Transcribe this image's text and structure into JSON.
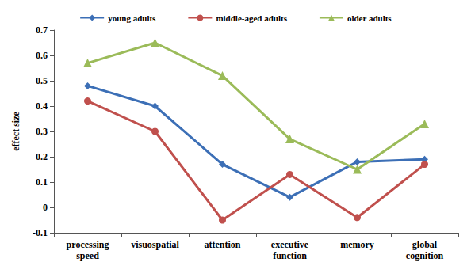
{
  "chart_data": {
    "type": "line",
    "y_label": "effect size",
    "categories": [
      "processing speed",
      "visuospatial",
      "attention",
      "executive function",
      "memory",
      "global cognition"
    ],
    "series": [
      {
        "name": "young adults",
        "color": "#3c6fb6",
        "marker": "diamond",
        "values": [
          0.48,
          0.4,
          0.17,
          0.04,
          0.18,
          0.19
        ]
      },
      {
        "name": "middle-aged adults",
        "color": "#c0504d",
        "marker": "circle",
        "values": [
          0.42,
          0.3,
          -0.05,
          0.13,
          -0.04,
          0.17
        ]
      },
      {
        "name": "older adults",
        "color": "#9bbb59",
        "marker": "triangle",
        "values": [
          0.57,
          0.65,
          0.52,
          0.27,
          0.15,
          0.33
        ]
      }
    ],
    "ylim": [
      -0.1,
      0.7
    ],
    "yticks": [
      -0.1,
      0,
      0.1,
      0.2,
      0.3,
      0.4,
      0.5,
      0.6,
      0.7
    ],
    "grid": false,
    "legend": "top"
  }
}
